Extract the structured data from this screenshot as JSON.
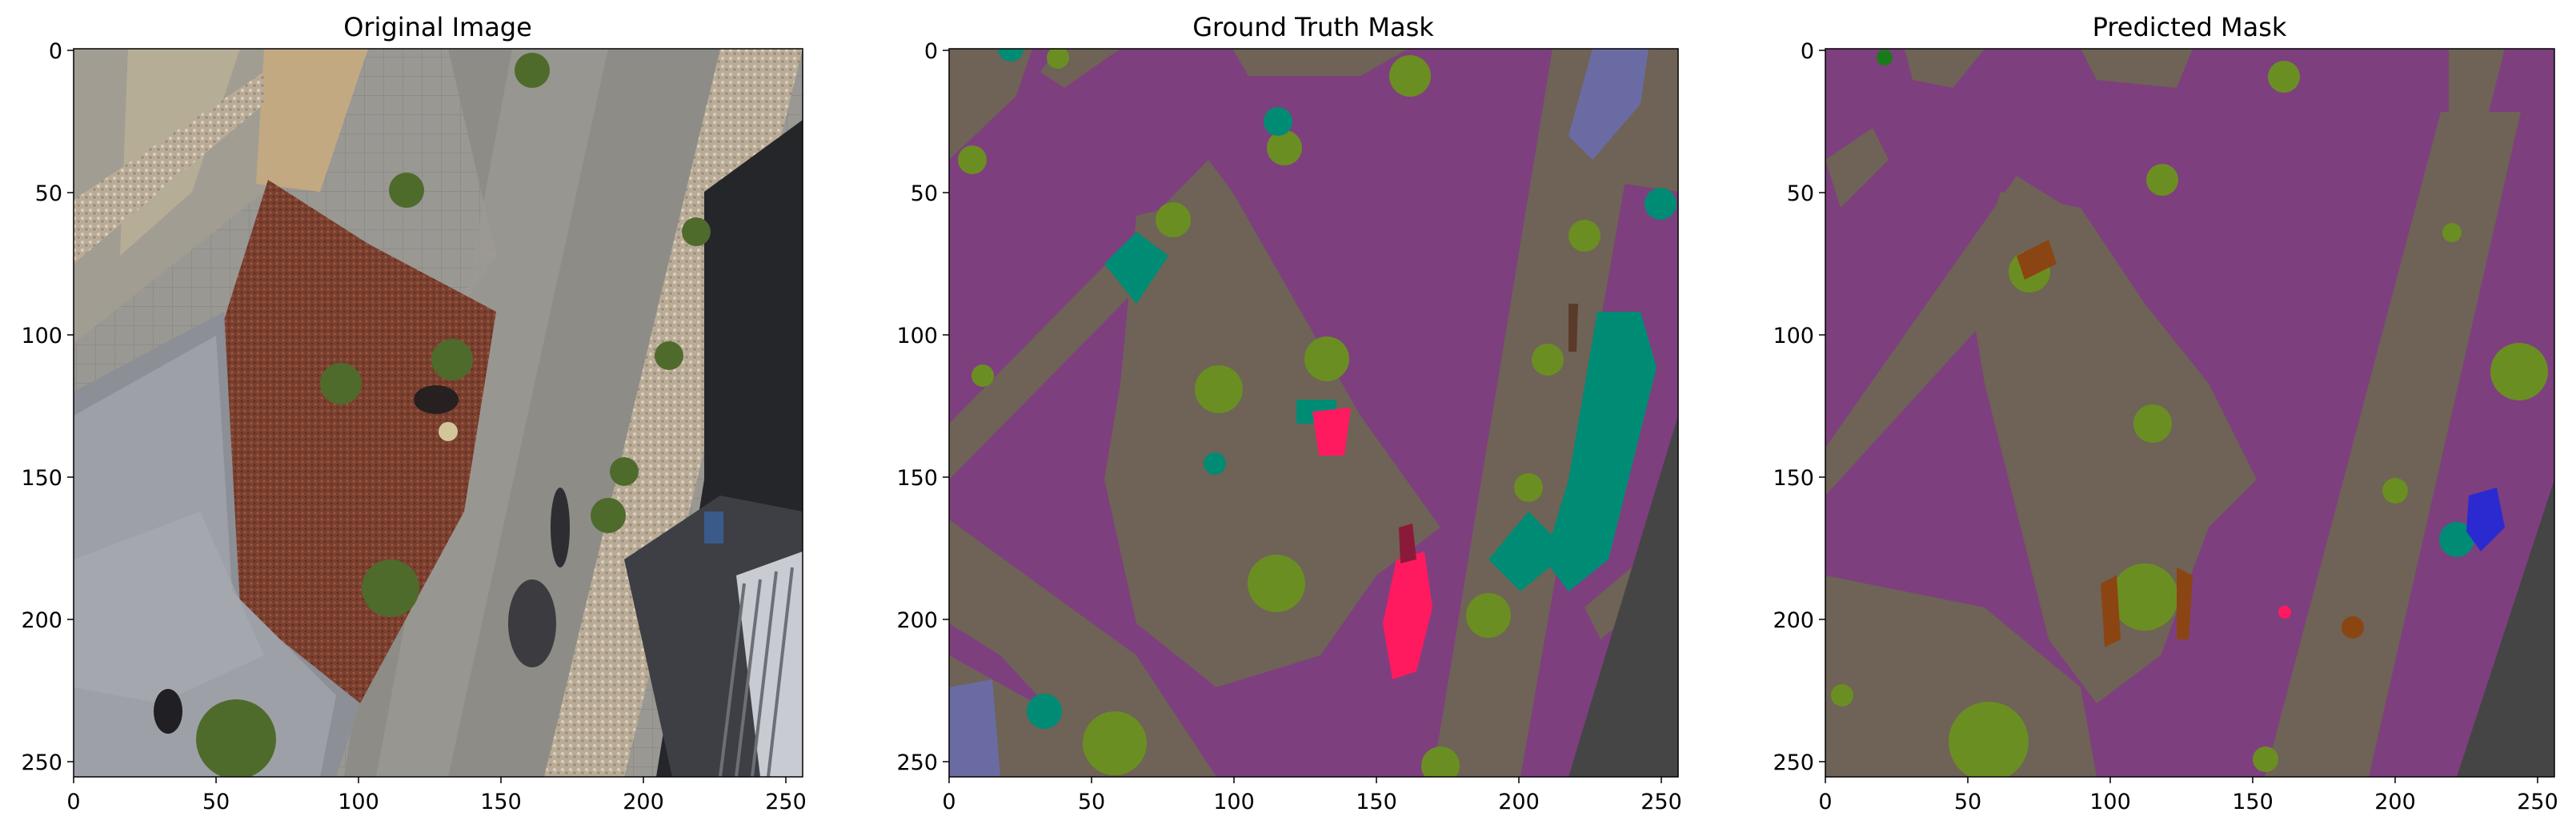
{
  "panels": [
    {
      "title": "Original Image",
      "x_ticks": [
        "0",
        "50",
        "100",
        "150",
        "200",
        "250"
      ],
      "y_ticks": [
        "0",
        "50",
        "100",
        "150",
        "200",
        "250"
      ],
      "content": "aerial-photo"
    },
    {
      "title": "Ground Truth Mask",
      "x_ticks": [
        "0",
        "50",
        "100",
        "150",
        "200",
        "250"
      ],
      "y_ticks": [
        "0",
        "50",
        "100",
        "150",
        "200",
        "250"
      ],
      "content": "segmentation-mask"
    },
    {
      "title": "Predicted Mask",
      "x_ticks": [
        "0",
        "50",
        "100",
        "150",
        "200",
        "250"
      ],
      "y_ticks": [
        "0",
        "50",
        "100",
        "150",
        "200",
        "250"
      ],
      "content": "segmentation-mask"
    }
  ],
  "colors": {
    "paved_area": "#7e3f7e",
    "ground": "#6e6356",
    "vegetation": "#6b8e23",
    "water_or_pool": "#008b75",
    "person": "#ff1a60",
    "roof": "#6b6ba4",
    "dark_obstacle": "#454545",
    "dirt": "#8b4513"
  }
}
